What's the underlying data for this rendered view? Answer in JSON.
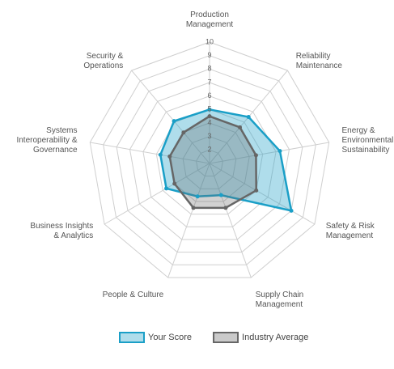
{
  "chart_data": {
    "type": "radar",
    "categories": [
      "Production\nManagement",
      "Reliability\nMaintenance",
      "Energy &\nEnvironmental\nSustainability",
      "Safety & Risk\nManagement",
      "Supply Chain\nManagement",
      "People & Culture",
      "Business Insights\n& Analytics",
      "Systems\nInteroperability &\nGovernance",
      "Security &\nOperations"
    ],
    "ylim": [
      1,
      10
    ],
    "yticks": [
      2,
      3,
      4,
      5,
      6,
      7,
      8,
      9,
      10
    ],
    "grid": true,
    "series": [
      {
        "name": "Your Score",
        "color": "#1a9fc7",
        "values": [
          5,
          5.5,
          6.3,
          8,
          3.5,
          3.6,
          4.7,
          4.7,
          5.1
        ]
      },
      {
        "name": "Industry Average",
        "color": "#666666",
        "values": [
          4.5,
          4.5,
          4.5,
          5,
          4.5,
          4.5,
          4,
          4,
          4
        ]
      }
    ]
  }
}
